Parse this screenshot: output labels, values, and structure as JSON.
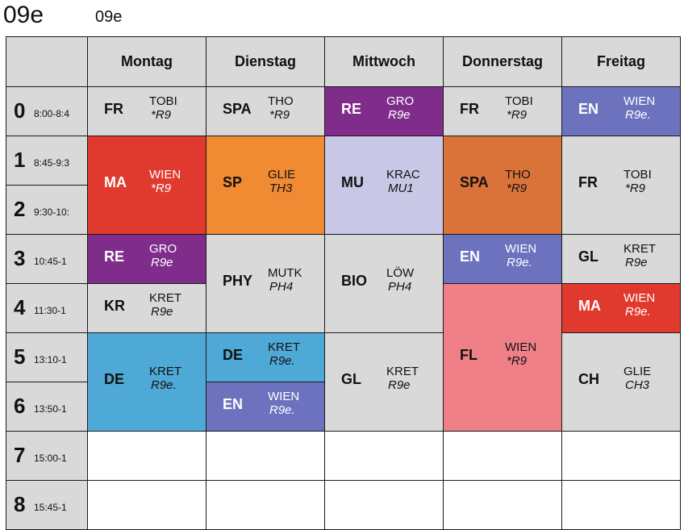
{
  "header": {
    "class_big": "09e",
    "class_small": "09e"
  },
  "days": [
    "Montag",
    "Dienstag",
    "Mittwoch",
    "Donnerstag",
    "Freitag"
  ],
  "periods": [
    {
      "num": "0",
      "time": "8:00-8:4"
    },
    {
      "num": "1",
      "time": "8:45-9:3"
    },
    {
      "num": "2",
      "time": "9:30-10:"
    },
    {
      "num": "3",
      "time": "10:45-1"
    },
    {
      "num": "4",
      "time": "11:30-1"
    },
    {
      "num": "5",
      "time": "13:10-1"
    },
    {
      "num": "6",
      "time": "13:50-1"
    },
    {
      "num": "7",
      "time": "15:00-1"
    },
    {
      "num": "8",
      "time": "15:45-1"
    }
  ],
  "colors": {
    "grey": "#d9d9d9",
    "purple": "#7f2c8a",
    "red": "#e03a2e",
    "orange": "#f08a33",
    "lavender": "#c8c8e6",
    "dark_orange": "#d9733a",
    "blue": "#6c72be",
    "cyan": "#4fa9d6",
    "pink": "#ef8087"
  },
  "lessons": [
    {
      "day": 0,
      "start": 0,
      "span": 1,
      "subject": "FR",
      "teacher": "TOBI",
      "room": "*R9",
      "color": "grey"
    },
    {
      "day": 0,
      "start": 1,
      "span": 2,
      "subject": "MA",
      "teacher": "WIEN",
      "room": "*R9",
      "color": "red"
    },
    {
      "day": 0,
      "start": 3,
      "span": 1,
      "subject": "RE",
      "teacher": "GRO",
      "room": "R9e",
      "color": "purple"
    },
    {
      "day": 0,
      "start": 4,
      "span": 1,
      "subject": "KR",
      "teacher": "KRET",
      "room": "R9e",
      "color": "grey"
    },
    {
      "day": 0,
      "start": 5,
      "span": 2,
      "subject": "DE",
      "teacher": "KRET",
      "room": "R9e.",
      "color": "cyan"
    },
    {
      "day": 1,
      "start": 0,
      "span": 1,
      "subject": "SPA",
      "teacher": "THO",
      "room": "*R9",
      "color": "grey"
    },
    {
      "day": 1,
      "start": 1,
      "span": 2,
      "subject": "SP",
      "teacher": "GLIE",
      "room": "TH3",
      "color": "orange"
    },
    {
      "day": 1,
      "start": 3,
      "span": 2,
      "subject": "PHY",
      "teacher": "MUTK",
      "room": "PH4",
      "color": "grey"
    },
    {
      "day": 1,
      "start": 5,
      "span": 1,
      "subject": "DE",
      "teacher": "KRET",
      "room": "R9e.",
      "color": "cyan"
    },
    {
      "day": 1,
      "start": 6,
      "span": 1,
      "subject": "EN",
      "teacher": "WIEN",
      "room": "R9e.",
      "color": "blue"
    },
    {
      "day": 2,
      "start": 0,
      "span": 1,
      "subject": "RE",
      "teacher": "GRO",
      "room": "R9e",
      "color": "purple"
    },
    {
      "day": 2,
      "start": 1,
      "span": 2,
      "subject": "MU",
      "teacher": "KRAC",
      "room": "MU1",
      "color": "lavender"
    },
    {
      "day": 2,
      "start": 3,
      "span": 2,
      "subject": "BIO",
      "teacher": "LÖW",
      "room": "PH4",
      "color": "grey"
    },
    {
      "day": 2,
      "start": 5,
      "span": 2,
      "subject": "GL",
      "teacher": "KRET",
      "room": "R9e",
      "color": "grey"
    },
    {
      "day": 3,
      "start": 0,
      "span": 1,
      "subject": "FR",
      "teacher": "TOBI",
      "room": "*R9",
      "color": "grey"
    },
    {
      "day": 3,
      "start": 1,
      "span": 2,
      "subject": "SPA",
      "teacher": "THO",
      "room": "*R9",
      "color": "dark_orange"
    },
    {
      "day": 3,
      "start": 3,
      "span": 1,
      "subject": "EN",
      "teacher": "WIEN",
      "room": "R9e.",
      "color": "blue"
    },
    {
      "day": 3,
      "start": 4,
      "span": 3,
      "subject": "FL",
      "teacher": "WIEN",
      "room": "*R9",
      "color": "pink"
    },
    {
      "day": 4,
      "start": 0,
      "span": 1,
      "subject": "EN",
      "teacher": "WIEN",
      "room": "R9e.",
      "color": "blue"
    },
    {
      "day": 4,
      "start": 1,
      "span": 2,
      "subject": "FR",
      "teacher": "TOBI",
      "room": "*R9",
      "color": "grey"
    },
    {
      "day": 4,
      "start": 3,
      "span": 1,
      "subject": "GL",
      "teacher": "KRET",
      "room": "R9e",
      "color": "grey"
    },
    {
      "day": 4,
      "start": 4,
      "span": 1,
      "subject": "MA",
      "teacher": "WIEN",
      "room": "R9e.",
      "color": "red"
    },
    {
      "day": 4,
      "start": 5,
      "span": 2,
      "subject": "CH",
      "teacher": "GLIE",
      "room": "CH3",
      "color": "grey"
    }
  ],
  "empty_slots": [
    {
      "day": 0,
      "start": 7,
      "span": 1
    },
    {
      "day": 1,
      "start": 7,
      "span": 1
    },
    {
      "day": 2,
      "start": 7,
      "span": 1
    },
    {
      "day": 3,
      "start": 7,
      "span": 1
    },
    {
      "day": 4,
      "start": 7,
      "span": 1
    },
    {
      "day": 0,
      "start": 8,
      "span": 1
    },
    {
      "day": 1,
      "start": 8,
      "span": 1
    },
    {
      "day": 2,
      "start": 8,
      "span": 1
    },
    {
      "day": 3,
      "start": 8,
      "span": 1
    },
    {
      "day": 4,
      "start": 8,
      "span": 1
    }
  ]
}
